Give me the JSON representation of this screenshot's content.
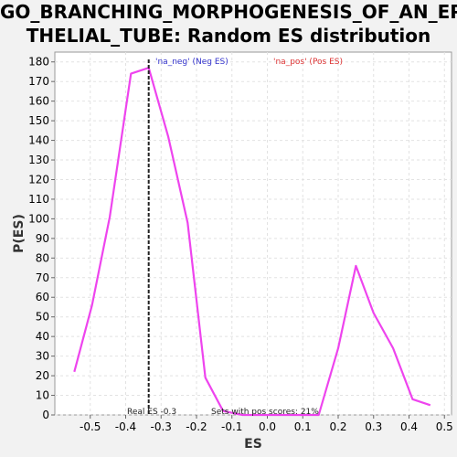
{
  "title_line1": "GO_BRANCHING_MORPHOGENESIS_OF_AN_EPI",
  "title_line2": "THELIAL_TUBE: Random ES distribution",
  "chart_data": {
    "type": "line",
    "title": "GO_BRANCHING_MORPHOGENESIS_OF_AN_EPITHELIAL_TUBE: Random ES distribution",
    "xlabel": "ES",
    "ylabel": "P(ES)",
    "xlim": [
      -0.6,
      0.52
    ],
    "ylim": [
      0,
      185
    ],
    "xticks": [
      -0.5,
      -0.4,
      -0.3,
      -0.2,
      -0.1,
      0.0,
      0.1,
      0.2,
      0.3,
      0.4,
      0.5
    ],
    "xtick_labels": [
      "-0.5",
      "-0.4",
      "-0.3",
      "-0.2",
      "-0.1",
      "0.0",
      "0.1",
      "0.2",
      "0.3",
      "0.4",
      "0.5"
    ],
    "yticks": [
      0,
      10,
      20,
      30,
      40,
      50,
      60,
      70,
      80,
      90,
      100,
      110,
      120,
      130,
      140,
      150,
      160,
      170,
      180
    ],
    "grid": true,
    "series": [
      {
        "color": "#ee44ee",
        "x": [
          -0.545,
          -0.495,
          -0.445,
          -0.385,
          -0.335,
          -0.28,
          -0.225,
          -0.175,
          -0.125,
          -0.07,
          -0.02,
          0.03,
          0.08,
          0.145,
          0.2,
          0.25,
          0.3,
          0.355,
          0.41,
          0.46
        ],
        "y": [
          22,
          56,
          101,
          174,
          177,
          142,
          98,
          19,
          2,
          0,
          0,
          0,
          0,
          0,
          34,
          76,
          52,
          34,
          8,
          5
        ]
      }
    ],
    "real_es": -0.335,
    "real_es_label": "Real ES -0.3",
    "pos_scores_label": "Sets with pos scores: 21%",
    "legend": [
      {
        "label": "'na_neg' (Neg ES)",
        "color": "#3333cc"
      },
      {
        "label": "'na_pos' (Pos ES)",
        "color": "#dd3333"
      }
    ],
    "legend_placement": "top"
  }
}
